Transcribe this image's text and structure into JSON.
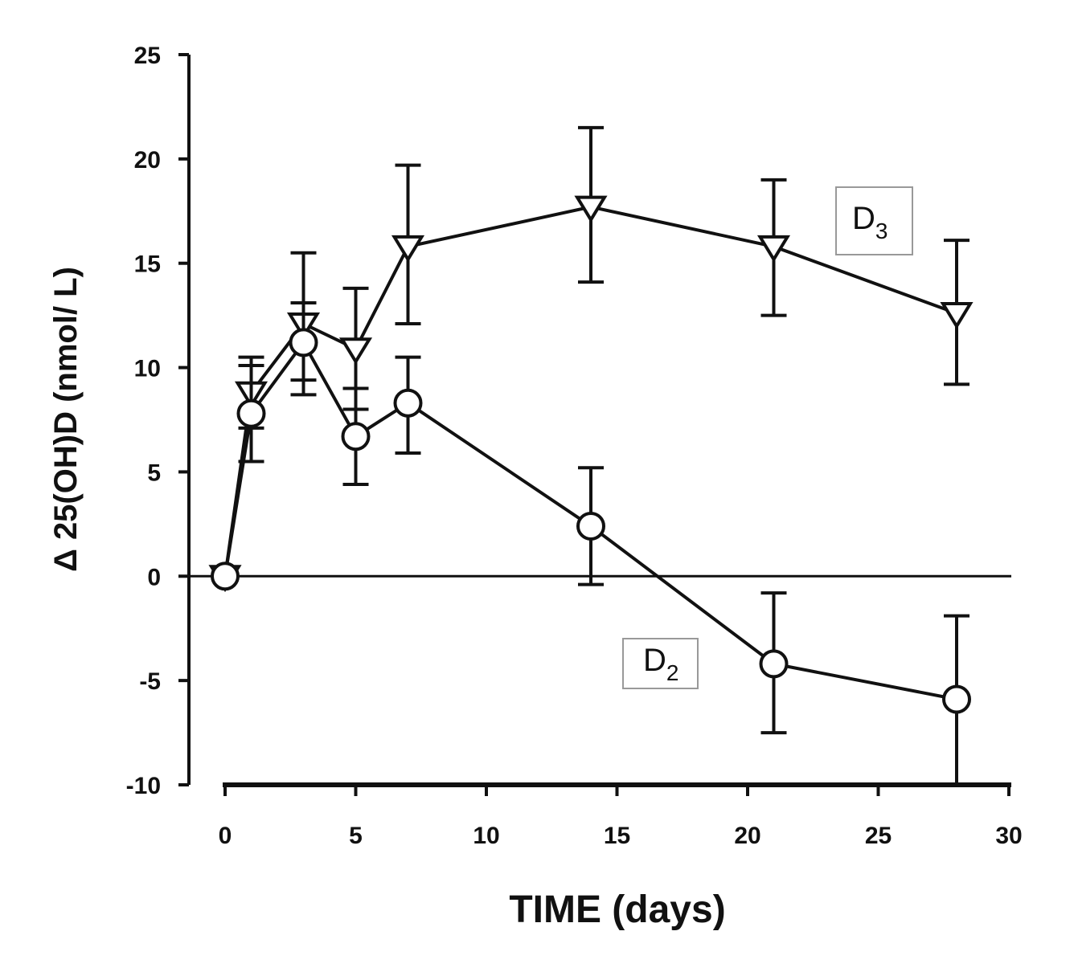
{
  "chart_data": {
    "type": "line",
    "xlabel": "TIME (days)",
    "ylabel": "Δ 25(OH)D (nmol/ L)",
    "xlim": [
      0,
      30
    ],
    "ylim": [
      -10,
      25
    ],
    "x_ticks": [
      "0",
      "5",
      "10",
      "15",
      "20",
      "25",
      "30"
    ],
    "y_ticks": [
      "25",
      "20",
      "15",
      "10",
      "5",
      "0",
      "-5",
      "-10"
    ],
    "grid": false,
    "reference_line_y": 0,
    "x": [
      0,
      1,
      3,
      5,
      7,
      14,
      21,
      28
    ],
    "series": [
      {
        "name": "D3",
        "label_main": "D",
        "label_sub": "3",
        "marker": "triangle-down-open",
        "values": [
          0,
          8.8,
          12.1,
          10.9,
          15.8,
          17.7,
          15.8,
          12.6
        ],
        "err_upper": [
          0,
          10.5,
          15.5,
          13.8,
          19.7,
          21.5,
          19.0,
          16.1
        ],
        "err_lower": [
          0,
          7.1,
          8.7,
          8.0,
          12.1,
          14.1,
          12.5,
          9.2
        ]
      },
      {
        "name": "D2",
        "label_main": "D",
        "label_sub": "2",
        "marker": "circle-open",
        "values": [
          0,
          7.8,
          11.2,
          6.7,
          8.3,
          2.4,
          -4.2,
          -5.9
        ],
        "err_upper": [
          0,
          10.1,
          13.1,
          9.0,
          10.5,
          5.2,
          -0.8,
          -1.9
        ],
        "err_lower": [
          0,
          5.5,
          9.4,
          4.4,
          5.9,
          -0.4,
          -7.5,
          -10.0
        ]
      }
    ],
    "legend": "inline labels"
  }
}
